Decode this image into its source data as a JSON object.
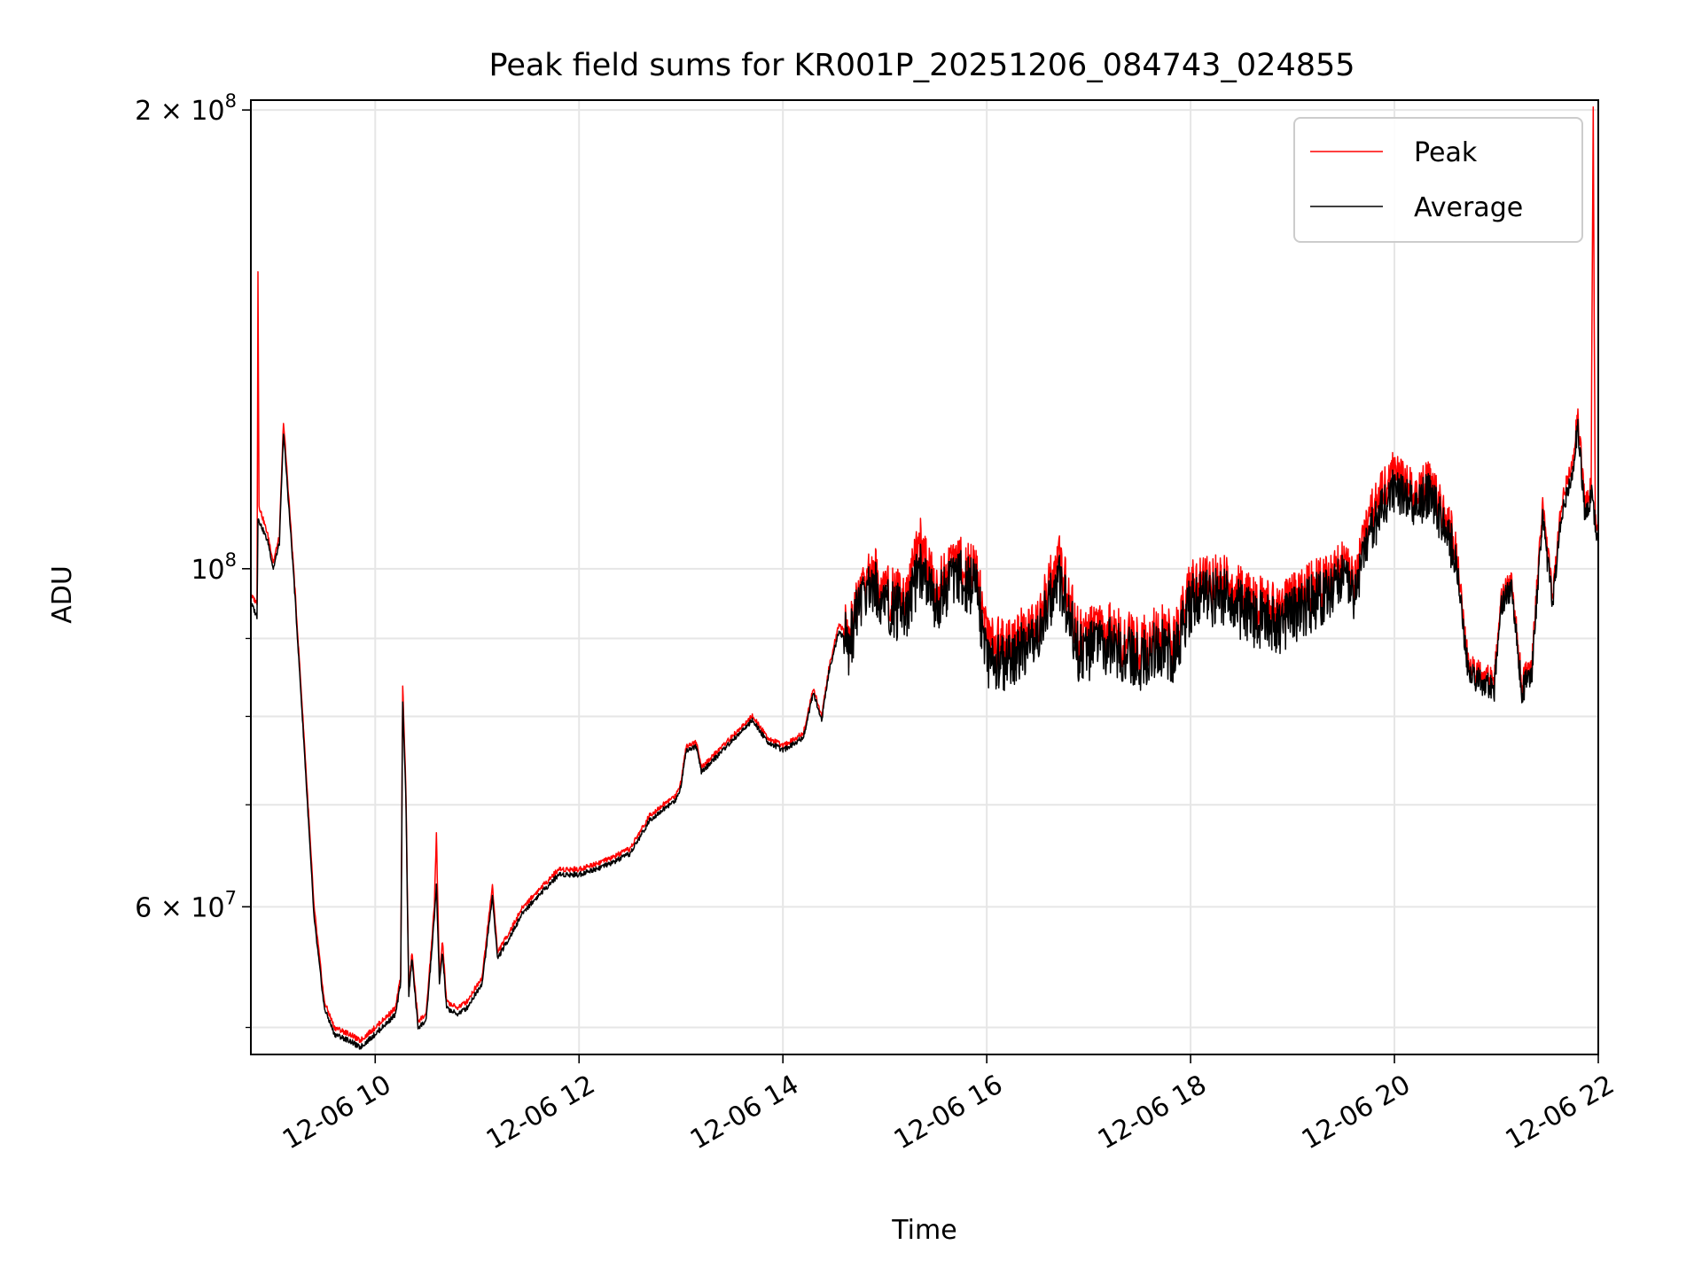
{
  "chart_data": {
    "type": "line",
    "title": "Peak field sums for KR001P_20251206_084743_024855",
    "xlabel": "Time",
    "ylabel": "ADU",
    "yscale": "log",
    "xlim": [
      8.78,
      22.0
    ],
    "ylim": [
      48000000,
      203000000
    ],
    "x_ticks": [
      {
        "value": 10,
        "label": "12-06 10"
      },
      {
        "value": 12,
        "label": "12-06 12"
      },
      {
        "value": 14,
        "label": "12-06 14"
      },
      {
        "value": 16,
        "label": "12-06 16"
      },
      {
        "value": 18,
        "label": "12-06 18"
      },
      {
        "value": 20,
        "label": "12-06 20"
      },
      {
        "value": 22,
        "label": "12-06 22"
      }
    ],
    "y_major_ticks": [
      {
        "value": 200000000,
        "base": "2 × 10",
        "exp": "8"
      },
      {
        "value": 100000000,
        "base": "10",
        "exp": "8"
      },
      {
        "value": 60000000,
        "base": "6 × 10",
        "exp": "7"
      }
    ],
    "y_minor_ticks": [
      50000000,
      70000000,
      80000000,
      90000000
    ],
    "grid": true,
    "legend": {
      "position": "top-right",
      "entries": [
        {
          "label": "Peak",
          "color": "#ff0000"
        },
        {
          "label": "Average",
          "color": "#000000"
        }
      ]
    },
    "x_unit": "hours on 12-06",
    "series": [
      {
        "name": "Peak",
        "color": "#ff0000",
        "points": [
          [
            8.78,
            96000000
          ],
          [
            8.84,
            95000000
          ],
          [
            8.85,
            157000000
          ],
          [
            8.86,
            110000000
          ],
          [
            8.95,
            105000000
          ],
          [
            9.0,
            101000000
          ],
          [
            9.06,
            105000000
          ],
          [
            9.1,
            125000000
          ],
          [
            9.2,
            100000000
          ],
          [
            9.3,
            78000000
          ],
          [
            9.4,
            60000000
          ],
          [
            9.5,
            52000000
          ],
          [
            9.6,
            50000000
          ],
          [
            9.75,
            49500000
          ],
          [
            9.85,
            49000000
          ],
          [
            10.0,
            50000000
          ],
          [
            10.2,
            51500000
          ],
          [
            10.25,
            54000000
          ],
          [
            10.27,
            84000000
          ],
          [
            10.3,
            72000000
          ],
          [
            10.33,
            53000000
          ],
          [
            10.36,
            56000000
          ],
          [
            10.42,
            50500000
          ],
          [
            10.5,
            51000000
          ],
          [
            10.58,
            60000000
          ],
          [
            10.6,
            67000000
          ],
          [
            10.63,
            54000000
          ],
          [
            10.66,
            57000000
          ],
          [
            10.7,
            52000000
          ],
          [
            10.8,
            51500000
          ],
          [
            10.9,
            52000000
          ],
          [
            11.05,
            54000000
          ],
          [
            11.15,
            62000000
          ],
          [
            11.2,
            56000000
          ],
          [
            11.3,
            57500000
          ],
          [
            11.45,
            60000000
          ],
          [
            11.6,
            61500000
          ],
          [
            11.8,
            63500000
          ],
          [
            12.0,
            63500000
          ],
          [
            12.3,
            64500000
          ],
          [
            12.5,
            65500000
          ],
          [
            12.7,
            69000000
          ],
          [
            12.95,
            71000000
          ],
          [
            13.0,
            72500000
          ],
          [
            13.05,
            76500000
          ],
          [
            13.15,
            77000000
          ],
          [
            13.2,
            74000000
          ],
          [
            13.45,
            77000000
          ],
          [
            13.7,
            80000000
          ],
          [
            13.85,
            77500000
          ],
          [
            14.0,
            76500000
          ],
          [
            14.2,
            78000000
          ],
          [
            14.3,
            83500000
          ],
          [
            14.38,
            80000000
          ],
          [
            14.45,
            86000000
          ],
          [
            14.55,
            92000000
          ],
          [
            14.65,
            90000000
          ],
          [
            14.75,
            96000000
          ],
          [
            14.85,
            100000000
          ],
          [
            15.0,
            97000000
          ],
          [
            15.2,
            95000000
          ],
          [
            15.35,
            104000000
          ],
          [
            15.5,
            97000000
          ],
          [
            15.7,
            101000000
          ],
          [
            15.9,
            99000000
          ],
          [
            16.0,
            90000000
          ],
          [
            16.2,
            89000000
          ],
          [
            16.5,
            92000000
          ],
          [
            16.7,
            102000000
          ],
          [
            16.9,
            90000000
          ],
          [
            17.2,
            91000000
          ],
          [
            17.5,
            89000000
          ],
          [
            17.7,
            91000000
          ],
          [
            17.85,
            90000000
          ],
          [
            18.0,
            97000000
          ],
          [
            18.3,
            98000000
          ],
          [
            18.6,
            95000000
          ],
          [
            18.9,
            94000000
          ],
          [
            19.1,
            96000000
          ],
          [
            19.3,
            98000000
          ],
          [
            19.5,
            101000000
          ],
          [
            19.6,
            98000000
          ],
          [
            19.75,
            108000000
          ],
          [
            20.0,
            116000000
          ],
          [
            20.2,
            112000000
          ],
          [
            20.35,
            114000000
          ],
          [
            20.5,
            108000000
          ],
          [
            20.6,
            104000000
          ],
          [
            20.72,
            87000000
          ],
          [
            20.85,
            85000000
          ],
          [
            20.98,
            84500000
          ],
          [
            21.05,
            96000000
          ],
          [
            21.15,
            98000000
          ],
          [
            21.25,
            84000000
          ],
          [
            21.35,
            87000000
          ],
          [
            21.45,
            110000000
          ],
          [
            21.55,
            96000000
          ],
          [
            21.65,
            112000000
          ],
          [
            21.75,
            118000000
          ],
          [
            21.8,
            126000000
          ],
          [
            21.87,
            110000000
          ],
          [
            21.93,
            114000000
          ],
          [
            21.95,
            203000000
          ],
          [
            21.97,
            108000000
          ],
          [
            22.0,
            108000000
          ]
        ]
      },
      {
        "name": "Average",
        "color": "#000000",
        "points": [
          [
            8.78,
            95000000
          ],
          [
            8.84,
            93000000
          ],
          [
            8.85,
            108000000
          ],
          [
            8.95,
            104000000
          ],
          [
            9.0,
            100000000
          ],
          [
            9.06,
            104000000
          ],
          [
            9.1,
            123000000
          ],
          [
            9.2,
            99000000
          ],
          [
            9.3,
            77000000
          ],
          [
            9.4,
            59000000
          ],
          [
            9.5,
            51500000
          ],
          [
            9.6,
            49500000
          ],
          [
            9.75,
            49000000
          ],
          [
            9.85,
            48500000
          ],
          [
            10.0,
            49500000
          ],
          [
            10.2,
            51000000
          ],
          [
            10.25,
            53500000
          ],
          [
            10.27,
            82000000
          ],
          [
            10.3,
            71000000
          ],
          [
            10.33,
            52500000
          ],
          [
            10.36,
            55500000
          ],
          [
            10.42,
            50000000
          ],
          [
            10.5,
            50500000
          ],
          [
            10.58,
            59000000
          ],
          [
            10.6,
            62000000
          ],
          [
            10.63,
            53500000
          ],
          [
            10.66,
            56000000
          ],
          [
            10.7,
            51500000
          ],
          [
            10.8,
            51000000
          ],
          [
            10.9,
            51500000
          ],
          [
            11.05,
            53500000
          ],
          [
            11.15,
            61000000
          ],
          [
            11.2,
            55500000
          ],
          [
            11.3,
            57000000
          ],
          [
            11.45,
            59500000
          ],
          [
            11.6,
            61000000
          ],
          [
            11.8,
            63000000
          ],
          [
            12.0,
            63000000
          ],
          [
            12.3,
            64000000
          ],
          [
            12.5,
            65000000
          ],
          [
            12.7,
            68500000
          ],
          [
            12.95,
            70500000
          ],
          [
            13.0,
            72000000
          ],
          [
            13.05,
            76000000
          ],
          [
            13.15,
            76500000
          ],
          [
            13.2,
            73500000
          ],
          [
            13.45,
            76500000
          ],
          [
            13.7,
            79500000
          ],
          [
            13.85,
            77000000
          ],
          [
            14.0,
            76000000
          ],
          [
            14.2,
            77500000
          ],
          [
            14.3,
            83000000
          ],
          [
            14.38,
            79500000
          ],
          [
            14.45,
            85500000
          ],
          [
            14.55,
            91000000
          ],
          [
            14.65,
            89000000
          ],
          [
            14.75,
            95000000
          ],
          [
            14.85,
            98000000
          ],
          [
            15.0,
            95000000
          ],
          [
            15.2,
            93000000
          ],
          [
            15.35,
            100000000
          ],
          [
            15.5,
            95000000
          ],
          [
            15.7,
            99000000
          ],
          [
            15.9,
            97000000
          ],
          [
            16.0,
            87000000
          ],
          [
            16.2,
            87000000
          ],
          [
            16.5,
            90000000
          ],
          [
            16.7,
            99000000
          ],
          [
            16.9,
            88000000
          ],
          [
            17.2,
            89000000
          ],
          [
            17.5,
            87000000
          ],
          [
            17.7,
            89000000
          ],
          [
            17.85,
            88000000
          ],
          [
            18.0,
            95000000
          ],
          [
            18.3,
            96000000
          ],
          [
            18.6,
            93000000
          ],
          [
            18.9,
            92000000
          ],
          [
            19.1,
            94000000
          ],
          [
            19.3,
            96000000
          ],
          [
            19.5,
            99000000
          ],
          [
            19.6,
            96000000
          ],
          [
            19.75,
            105000000
          ],
          [
            20.0,
            113000000
          ],
          [
            20.2,
            110000000
          ],
          [
            20.35,
            112000000
          ],
          [
            20.5,
            106000000
          ],
          [
            20.6,
            102000000
          ],
          [
            20.72,
            86000000
          ],
          [
            20.85,
            84000000
          ],
          [
            20.98,
            83500000
          ],
          [
            21.05,
            95000000
          ],
          [
            21.15,
            97000000
          ],
          [
            21.25,
            83000000
          ],
          [
            21.35,
            86000000
          ],
          [
            21.45,
            108000000
          ],
          [
            21.55,
            95000000
          ],
          [
            21.65,
            110000000
          ],
          [
            21.75,
            116000000
          ],
          [
            21.8,
            124000000
          ],
          [
            21.87,
            108000000
          ],
          [
            21.93,
            112000000
          ],
          [
            21.95,
            112000000
          ],
          [
            21.97,
            106000000
          ],
          [
            22.0,
            107000000
          ]
        ]
      }
    ]
  }
}
